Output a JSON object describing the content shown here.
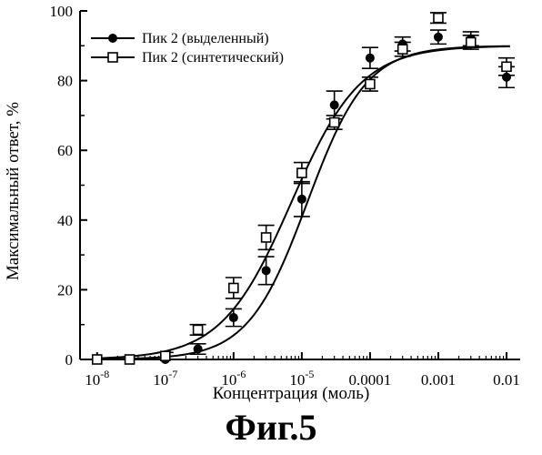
{
  "caption": "Фиг.5",
  "chart_data": {
    "type": "scatter",
    "xlabel": "Концентрация (моль)",
    "ylabel": "Максимальный ответ, %",
    "x_scale": "log",
    "xlim": [
      1e-08,
      0.01
    ],
    "ylim": [
      0,
      100
    ],
    "x_ticks": [
      {
        "value": 1e-08,
        "base": "10",
        "exp": "-8"
      },
      {
        "value": 1e-07,
        "base": "10",
        "exp": "-7"
      },
      {
        "value": 1e-06,
        "base": "10",
        "exp": "-6"
      },
      {
        "value": 1e-05,
        "base": "10",
        "exp": "-5"
      },
      {
        "value": 0.0001,
        "base": "0.0001",
        "exp": ""
      },
      {
        "value": 0.001,
        "base": "0.001",
        "exp": ""
      },
      {
        "value": 0.01,
        "base": "0.01",
        "exp": ""
      }
    ],
    "y_ticks": [
      0,
      20,
      40,
      60,
      80,
      100
    ],
    "legend_position": "top-left",
    "series": [
      {
        "name": "Пик 2 (выделенный)",
        "marker": "filled-circle",
        "points": [
          {
            "x": 1e-08,
            "y": 0,
            "err": 0.5
          },
          {
            "x": 3e-08,
            "y": 0,
            "err": 0.5
          },
          {
            "x": 1e-07,
            "y": 0,
            "err": 0.5
          },
          {
            "x": 3e-07,
            "y": 3,
            "err": 1.5
          },
          {
            "x": 1e-06,
            "y": 12,
            "err": 2.5
          },
          {
            "x": 3e-06,
            "y": 25.5,
            "err": 4
          },
          {
            "x": 1e-05,
            "y": 46,
            "err": 5
          },
          {
            "x": 3e-05,
            "y": 73,
            "err": 4
          },
          {
            "x": 0.0001,
            "y": 86.5,
            "err": 3
          },
          {
            "x": 0.0003,
            "y": 90.5,
            "err": 2
          },
          {
            "x": 0.001,
            "y": 92.5,
            "err": 2
          },
          {
            "x": 0.003,
            "y": 92,
            "err": 2
          },
          {
            "x": 0.01,
            "y": 81,
            "err": 3
          }
        ],
        "fit": {
          "bottom": 0,
          "top": 90,
          "ec50": 1.2e-05,
          "hill": 1.0
        }
      },
      {
        "name": "Пик 2 (синтетический)",
        "marker": "open-square",
        "points": [
          {
            "x": 1e-08,
            "y": 0,
            "err": 0.5
          },
          {
            "x": 3e-08,
            "y": 0,
            "err": 0.5
          },
          {
            "x": 1e-07,
            "y": 1,
            "err": 1
          },
          {
            "x": 3e-07,
            "y": 8.5,
            "err": 1.5
          },
          {
            "x": 1e-06,
            "y": 20.5,
            "err": 3
          },
          {
            "x": 3e-06,
            "y": 35,
            "err": 3.5
          },
          {
            "x": 1e-05,
            "y": 53.5,
            "err": 3
          },
          {
            "x": 3e-05,
            "y": 68,
            "err": 2
          },
          {
            "x": 0.0001,
            "y": 79,
            "err": 2
          },
          {
            "x": 0.0003,
            "y": 89,
            "err": 2
          },
          {
            "x": 0.001,
            "y": 98,
            "err": 1.5
          },
          {
            "x": 0.003,
            "y": 91,
            "err": 2
          },
          {
            "x": 0.01,
            "y": 84,
            "err": 2.5
          }
        ],
        "fit": {
          "bottom": 0,
          "top": 90,
          "ec50": 7e-06,
          "hill": 0.85
        }
      }
    ]
  }
}
